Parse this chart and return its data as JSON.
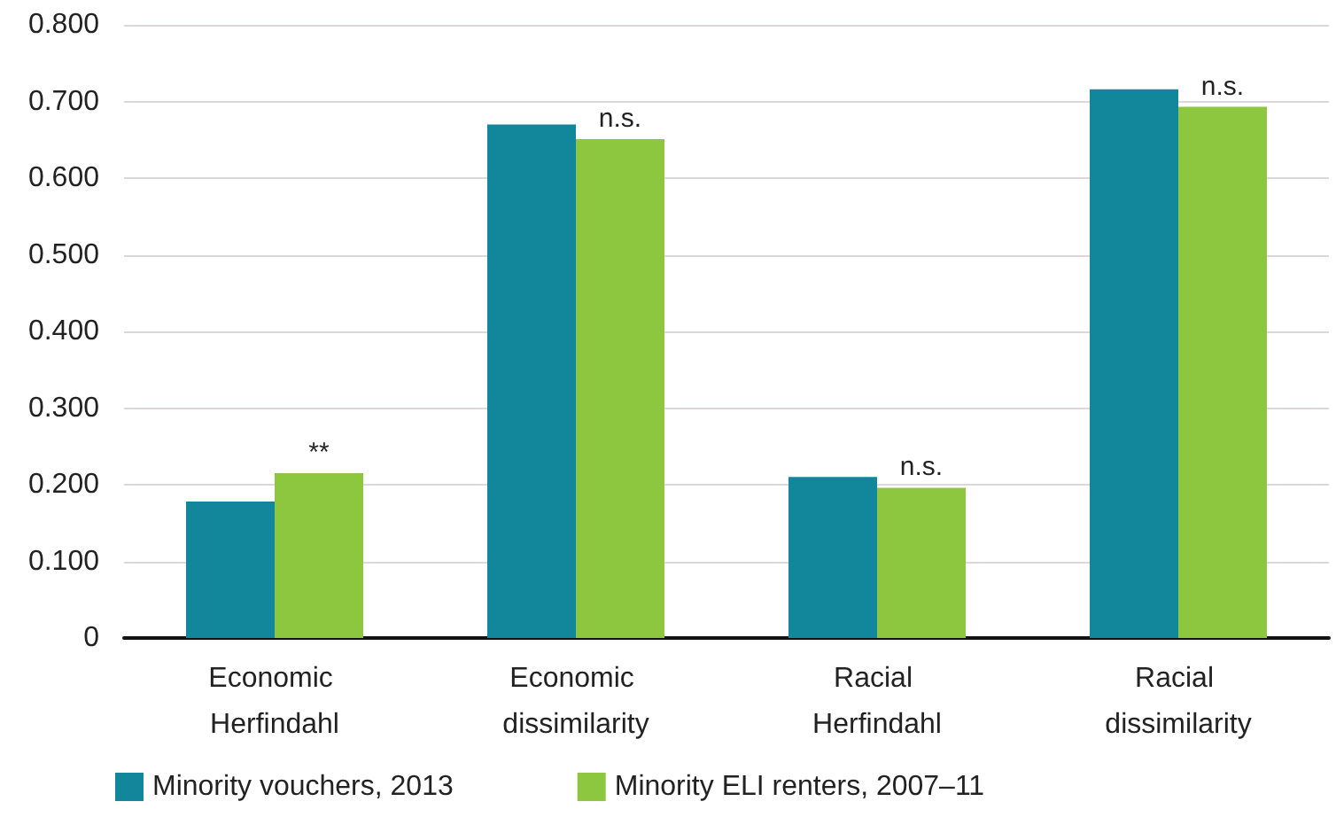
{
  "chart_data": {
    "type": "bar",
    "categories": [
      "Economic Herfindahl",
      "Economic dissimilarity",
      "Racial Herfindahl",
      "Racial dissimilarity"
    ],
    "series": [
      {
        "name": "Minority vouchers, 2013",
        "color": "#12879b",
        "values": [
          0.178,
          0.67,
          0.21,
          0.716
        ]
      },
      {
        "name": "Minority ELI renters, 2007–11",
        "color": "#8dc63f",
        "values": [
          0.215,
          0.651,
          0.196,
          0.693
        ]
      }
    ],
    "ylim": [
      0,
      0.8
    ],
    "yticks": [
      {
        "value": 0,
        "label": "0"
      },
      {
        "value": 0.1,
        "label": "0.100"
      },
      {
        "value": 0.2,
        "label": "0.200"
      },
      {
        "value": 0.3,
        "label": "0.300"
      },
      {
        "value": 0.4,
        "label": "0.400"
      },
      {
        "value": 0.5,
        "label": "0.500"
      },
      {
        "value": 0.6,
        "label": "0.600"
      },
      {
        "value": 0.7,
        "label": "0.700"
      },
      {
        "value": 0.8,
        "label": "0.800"
      }
    ],
    "grid": "y",
    "legend": "bottom left",
    "annotations": [
      {
        "text": "**",
        "x": "Economic Herfindahl",
        "y": 0.215
      },
      {
        "text": "n.s.",
        "x": "Economic dissimilarity",
        "y": 0.651
      },
      {
        "text": "n.s.",
        "x": "Racial Herfindahl",
        "y": 0.196
      },
      {
        "text": "n.s.",
        "x": "Racial dissimilarity",
        "y": 0.693
      }
    ]
  }
}
